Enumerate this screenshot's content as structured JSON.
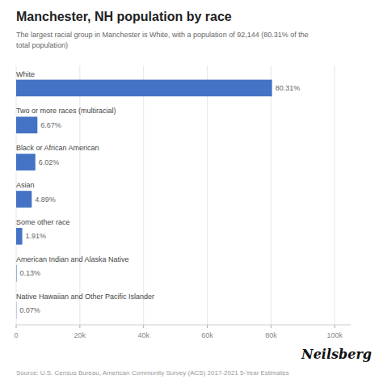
{
  "chart_data": {
    "type": "bar",
    "orientation": "horizontal",
    "title": "Manchester, NH population by race",
    "subtitle": "The largest racial group in Manchester is White, with a population of 92,144 (80.31% of the\ntotal population)",
    "categories": [
      "White",
      "Two or more races (multiracial)",
      "Black or African American",
      "Asian",
      "Some other race",
      "American Indian and Alaska Native",
      "Native Hawaiian and Other Pacific Islander"
    ],
    "values": [
      80.31,
      6.67,
      6.02,
      4.89,
      1.91,
      0.13,
      0.07
    ],
    "value_labels": [
      "80.31%",
      "6.67%",
      "6.02%",
      "4.89%",
      "1.91%",
      "0.13%",
      "0.07%"
    ],
    "data_labels": true,
    "color": "#4472C4",
    "xlim": [
      0,
      105
    ],
    "xticks": [
      0,
      {
        "value": 20,
        "label": "20k"
      },
      {
        "value": 40,
        "label": "40k"
      },
      {
        "value": 60,
        "label": "60k"
      },
      {
        "value": 80,
        "label": "80k"
      },
      {
        "value": 100,
        "label": "100k"
      }
    ],
    "grid": true,
    "annotations": [
      "Source: U.S. Census Bureau, American Community Survey (ACS) 2017-2021 5-Year Estimates",
      "Neilsberg"
    ]
  }
}
